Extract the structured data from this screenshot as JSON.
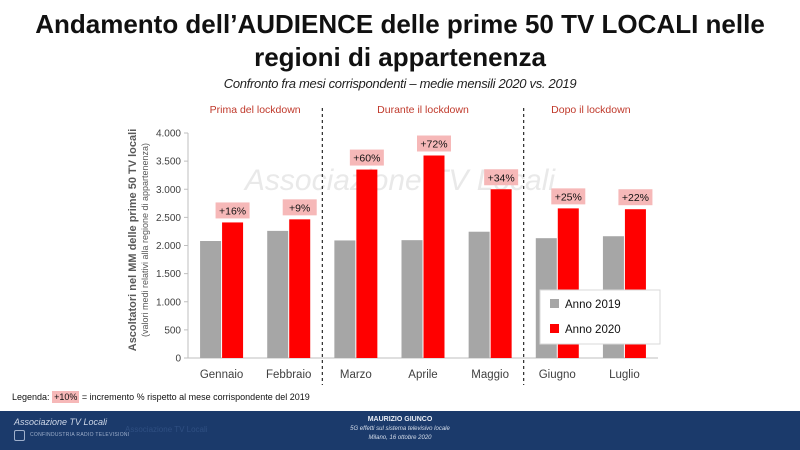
{
  "slide": {
    "title_line1": "Andamento dell’AUDIENCE delle prime 50 TV LOCALI nelle",
    "title_line2": "regioni di appartenenza",
    "subtitle": "Confronto fra mesi corrispondenti – medie mensili 2020 vs. 2019"
  },
  "chart_data": {
    "type": "bar",
    "categories": [
      "Gennaio",
      "Febbraio",
      "Marzo",
      "Aprile",
      "Maggio",
      "Giugno",
      "Luglio"
    ],
    "series": [
      {
        "name": "Anno 2019",
        "color": "#a6a6a6",
        "values": [
          2080,
          2260,
          2090,
          2095,
          2245,
          2130,
          2165
        ]
      },
      {
        "name": "Anno 2020",
        "color": "#ff0000",
        "values": [
          2410,
          2465,
          3350,
          3600,
          3000,
          2660,
          2645
        ]
      }
    ],
    "increments": [
      "+16%",
      "+9%",
      "+60%",
      "+72%",
      "+34%",
      "+25%",
      "+22%"
    ],
    "periods": [
      {
        "label": "Prima del lockdown",
        "months": [
          0,
          1
        ]
      },
      {
        "label": "Durante il lockdown",
        "months": [
          2,
          3,
          4
        ]
      },
      {
        "label": "Dopo il lockdown",
        "months": [
          5,
          6
        ]
      }
    ],
    "ylabel": "Ascoltatori nel MM delle prime 50 TV locali",
    "ylabel_sub": "(valori medi relativi alla regione di appartenenza)",
    "ylim": [
      0,
      4000
    ],
    "yticks": [
      0,
      500,
      1000,
      1500,
      2000,
      2500,
      3000,
      3500,
      4000
    ],
    "ytick_labels": [
      "0",
      "500",
      "1.000",
      "1.500",
      "2.000",
      "2.500",
      "3.000",
      "3.500",
      "4.000"
    ],
    "legend_position": "bottom-right",
    "grid": false,
    "period_label_color": "#c0392b",
    "increment_box_color": "#f6b8b8",
    "watermark": "Associazione TV Locali"
  },
  "legend_note": {
    "prefix": "Legenda:",
    "sample": "+10%",
    "text": "= incremento  % rispetto  al mese corrispondente  del 2019"
  },
  "footer": {
    "org": "Associazione TV Locali",
    "org_sub": "CONFINDUSTRIA RADIO TELEVISIONI",
    "faded": "Associazione TV Locali",
    "speaker": "MAURIZIO GIUNCO",
    "talk": "5G effetti sul sistema televisivo locale",
    "place": "Milano, 16 ottobre 2020"
  }
}
